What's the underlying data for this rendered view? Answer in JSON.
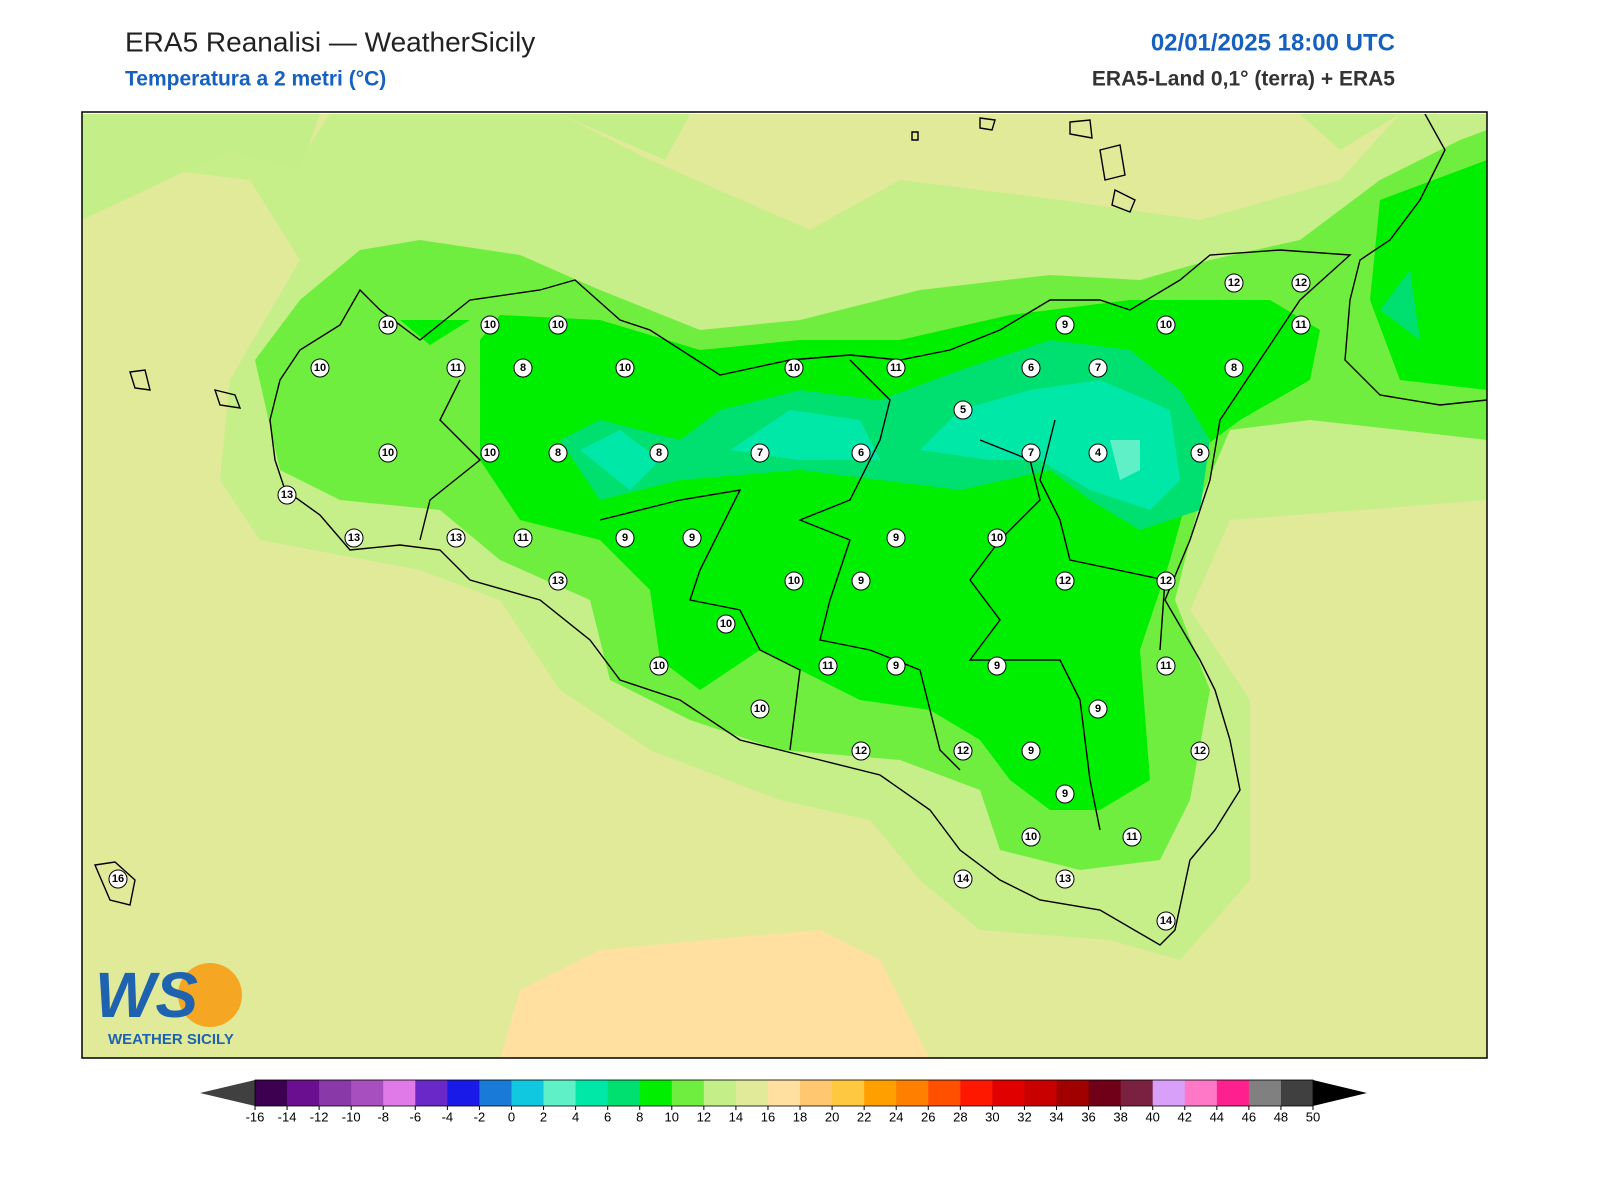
{
  "header": {
    "title": "ERA5 Reanalisi — WeatherSicily",
    "subtitle": "Temperatura a 2 metri (°C)",
    "datetime": "02/01/2025 18:00 UTC",
    "source": "ERA5-Land 0,1° (terra) + ERA5"
  },
  "logo": {
    "mark": "WS",
    "name": "WEATHER SICILY"
  },
  "stations": [
    10,
    10,
    10,
    10,
    11,
    8,
    10,
    10,
    11,
    9,
    10,
    12,
    12,
    11,
    6,
    7,
    8,
    5,
    10,
    10,
    8,
    8,
    7,
    6,
    7,
    4,
    9,
    13,
    13,
    13,
    11,
    9,
    9,
    9,
    10,
    13,
    10,
    9,
    12,
    12,
    10,
    10,
    11,
    9,
    9,
    11,
    10,
    9,
    12,
    12,
    9,
    12,
    9,
    10,
    11,
    14,
    13,
    14,
    16
  ],
  "colorbar": {
    "ticks": [
      -16,
      -14,
      -12,
      -10,
      -8,
      -6,
      -4,
      -2,
      0,
      2,
      4,
      6,
      8,
      10,
      12,
      14,
      16,
      18,
      20,
      22,
      24,
      26,
      28,
      30,
      32,
      34,
      36,
      38,
      40,
      42,
      44,
      46,
      48,
      50
    ],
    "colors": [
      "#3d0050",
      "#6a0f8f",
      "#8a3aa8",
      "#a84fc0",
      "#e07ae8",
      "#6a28c8",
      "#1a1ae8",
      "#1a7ad8",
      "#10c8e0",
      "#5ff0c8",
      "#00e8a8",
      "#00e070",
      "#00ee00",
      "#70ee40",
      "#c4ee88",
      "#e0ea98",
      "#ffe0a0",
      "#ffc870",
      "#ffc840",
      "#ffa000",
      "#ff8000",
      "#ff5000",
      "#ff1800",
      "#e00000",
      "#c80000",
      "#a00000",
      "#700018",
      "#7a2040",
      "#d8a0f8",
      "#ff78c8",
      "#ff2090",
      "#808080",
      "#404040"
    ],
    "under_color": "#404040",
    "over_color": "#000000"
  }
}
